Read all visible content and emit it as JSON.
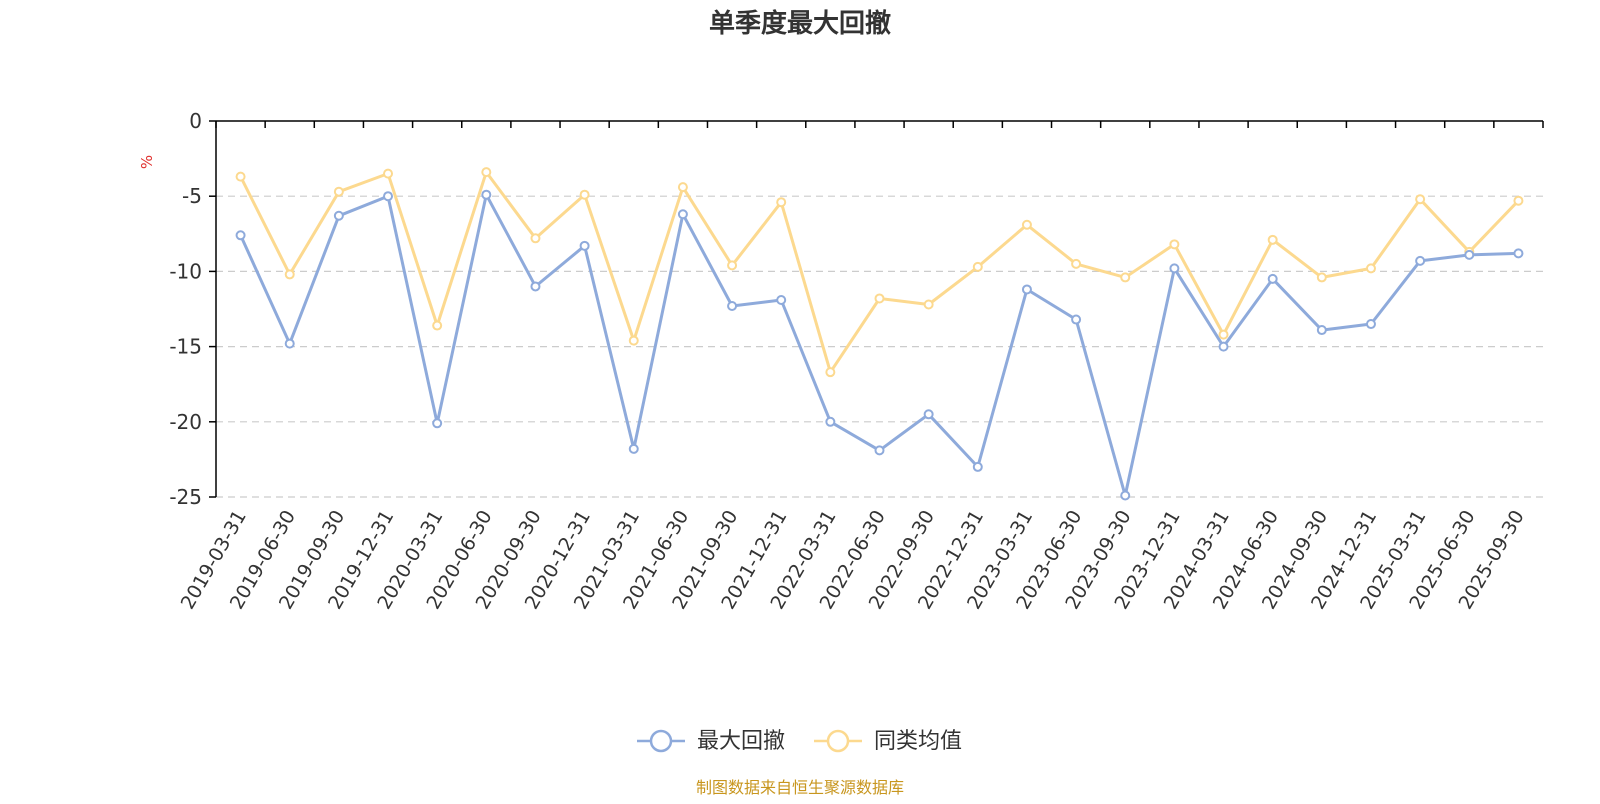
{
  "chart_data": {
    "type": "line",
    "title": "单季度最大回撤",
    "ylabel": "%",
    "ylim": [
      -25,
      0
    ],
    "yticks": [
      0,
      -5,
      -10,
      -15,
      -20,
      -25
    ],
    "ytick_labels": [
      "0",
      "-5",
      "-10",
      "-15",
      "-20",
      "-25"
    ],
    "grid": true,
    "legend_position": "bottom",
    "categories": [
      "2019-03-31",
      "2019-06-30",
      "2019-09-30",
      "2019-12-31",
      "2020-03-31",
      "2020-06-30",
      "2020-09-30",
      "2020-12-31",
      "2021-03-31",
      "2021-06-30",
      "2021-09-30",
      "2021-12-31",
      "2022-03-31",
      "2022-06-30",
      "2022-09-30",
      "2022-12-31",
      "2023-03-31",
      "2023-06-30",
      "2023-09-30",
      "2023-12-31",
      "2024-03-31",
      "2024-06-30",
      "2024-09-30",
      "2024-12-31",
      "2025-03-31",
      "2025-06-30",
      "2025-09-30"
    ],
    "series": [
      {
        "name": "最大回撤",
        "color": "#8eaadb",
        "values": [
          -7.6,
          -14.8,
          -6.3,
          -5.0,
          -20.1,
          -4.9,
          -11.0,
          -8.3,
          -21.8,
          -6.2,
          -12.3,
          -11.9,
          -20.0,
          -21.9,
          -19.5,
          -23.0,
          -11.2,
          -13.2,
          -24.9,
          -9.8,
          -15.0,
          -10.5,
          -13.9,
          -13.5,
          -9.3,
          -8.9,
          -8.8
        ]
      },
      {
        "name": "同类均值",
        "color": "#fcd98f",
        "values": [
          -3.7,
          -10.2,
          -4.7,
          -3.5,
          -13.6,
          -3.4,
          -7.8,
          -4.9,
          -14.6,
          -4.4,
          -9.6,
          -5.4,
          -16.7,
          -11.8,
          -12.2,
          -9.7,
          -6.9,
          -9.5,
          -10.4,
          -8.2,
          -14.2,
          -7.9,
          -10.4,
          -9.8,
          -5.2,
          -8.7,
          -5.3
        ]
      }
    ],
    "source": "制图数据来自恒生聚源数据库",
    "colors": {
      "text": "#333333",
      "unit": "#e0312f",
      "source": "#c8961e",
      "grid": "#cccccc",
      "axis": "#000000",
      "marker_fill": "#ffffff"
    }
  }
}
